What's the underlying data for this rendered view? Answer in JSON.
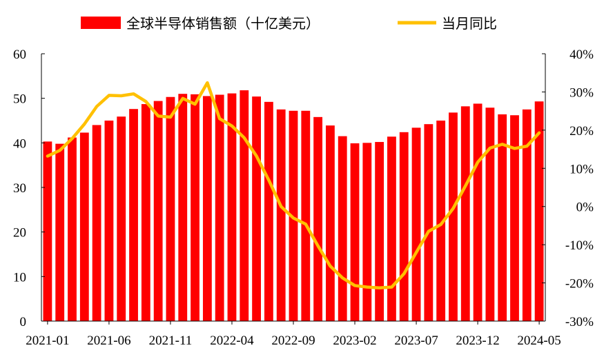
{
  "chart_data": {
    "type": "bar",
    "categories": [
      "2021-01",
      "2021-02",
      "2021-03",
      "2021-04",
      "2021-05",
      "2021-06",
      "2021-07",
      "2021-08",
      "2021-09",
      "2021-10",
      "2021-11",
      "2021-12",
      "2022-01",
      "2022-02",
      "2022-03",
      "2022-04",
      "2022-05",
      "2022-06",
      "2022-07",
      "2022-08",
      "2022-09",
      "2022-10",
      "2022-11",
      "2022-12",
      "2023-01",
      "2023-02",
      "2023-03",
      "2023-04",
      "2023-05",
      "2023-06",
      "2023-07",
      "2023-08",
      "2023-09",
      "2023-10",
      "2023-11",
      "2023-12",
      "2024-01",
      "2024-02",
      "2024-03",
      "2024-04",
      "2024-05"
    ],
    "x_tick_labels": [
      "2021-01",
      "2021-06",
      "2021-11",
      "2022-04",
      "2022-09",
      "2023-02",
      "2023-07",
      "2023-12",
      "2024-05"
    ],
    "series": [
      {
        "name": "全球半导体销售额（十亿美元）",
        "type": "bar",
        "axis": "left",
        "color": "#ff0000",
        "values": [
          40.3,
          39.8,
          41.2,
          42.3,
          44.0,
          45.0,
          45.9,
          47.6,
          48.7,
          49.4,
          50.3,
          51.0,
          50.9,
          50.5,
          50.8,
          51.1,
          51.8,
          50.4,
          49.2,
          47.5,
          47.2,
          47.2,
          45.8,
          43.9,
          41.5,
          39.9,
          40.0,
          40.2,
          41.4,
          42.4,
          43.4,
          44.2,
          45.0,
          46.8,
          48.2,
          48.8,
          47.9,
          46.4,
          46.2,
          47.5,
          49.3
        ]
      },
      {
        "name": "当月同比",
        "type": "line",
        "axis": "right",
        "color": "#ffc000",
        "values": [
          13.2,
          14.7,
          17.8,
          21.6,
          26.2,
          29.1,
          29.0,
          29.5,
          27.5,
          23.7,
          23.4,
          28.3,
          26.8,
          32.4,
          23.0,
          21.1,
          18.0,
          13.2,
          6.9,
          0.0,
          -3.0,
          -4.6,
          -10.3,
          -15.6,
          -18.7,
          -20.7,
          -21.1,
          -21.3,
          -21.1,
          -17.6,
          -12.0,
          -6.5,
          -4.7,
          -0.5,
          5.4,
          11.6,
          15.3,
          16.3,
          15.2,
          15.8,
          19.3
        ]
      }
    ],
    "y_left": {
      "ylim": [
        0,
        60
      ],
      "ticks": [
        "0",
        "10",
        "20",
        "30",
        "40",
        "50",
        "60"
      ]
    },
    "y_right": {
      "ylim": [
        -30,
        40
      ],
      "ticks": [
        "-30%",
        "-20%",
        "-10%",
        "0%",
        "10%",
        "20%",
        "30%",
        "40%"
      ]
    },
    "grid": false,
    "legend_position": "top"
  }
}
